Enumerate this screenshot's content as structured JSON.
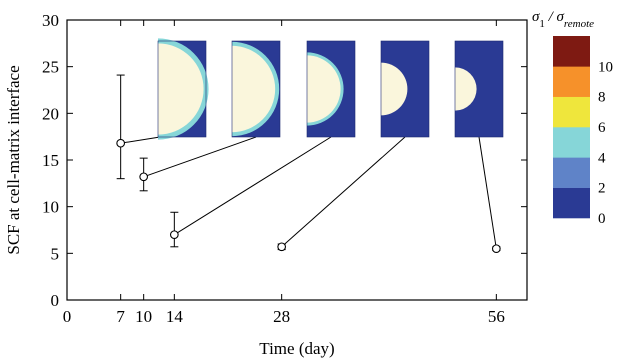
{
  "chart_data": {
    "type": "scatter",
    "xlabel": "Time (day)",
    "ylabel": "SCF at cell-matrix interface",
    "xlim": [
      0,
      60
    ],
    "ylim": [
      0,
      30
    ],
    "xticks": [
      0,
      7,
      10,
      14,
      28,
      56
    ],
    "yticks": [
      0,
      5,
      10,
      15,
      20,
      25,
      30
    ],
    "grid": false,
    "points": [
      {
        "x": 7,
        "y": 16.8,
        "err_low": 13.0,
        "err_high": 24.1
      },
      {
        "x": 10,
        "y": 13.2,
        "err_low": 11.7,
        "err_high": 15.2
      },
      {
        "x": 14,
        "y": 7.0,
        "err_low": 5.7,
        "err_high": 9.4
      },
      {
        "x": 28,
        "y": 5.7,
        "err_low": 5.4,
        "err_high": 6.0
      },
      {
        "x": 56,
        "y": 5.5,
        "err_low": 5.3,
        "err_high": 5.7
      }
    ],
    "insets": [
      {
        "day": 7,
        "cell_fraction": 0.95,
        "band": "strong"
      },
      {
        "day": 10,
        "cell_fraction": 0.9,
        "band": "medium"
      },
      {
        "day": 14,
        "cell_fraction": 0.7,
        "band": "sliver"
      },
      {
        "day": 28,
        "cell_fraction": 0.55,
        "band": "none"
      },
      {
        "day": 56,
        "cell_fraction": 0.45,
        "band": "none"
      }
    ],
    "colorbar": {
      "title": "σ1 / σremote",
      "title_main": "σ",
      "title_sub1": "1",
      "title_sep": " / σ",
      "title_sub2": "remote",
      "ticks": [
        "0",
        "2",
        "4",
        "6",
        "8",
        "10"
      ],
      "levels": [
        {
          "from": 0,
          "to": 2,
          "color": "#2a3a94"
        },
        {
          "from": 2,
          "to": 4,
          "color": "#5f83c8"
        },
        {
          "from": 4,
          "to": 6,
          "color": "#86d6d8"
        },
        {
          "from": 6,
          "to": 8,
          "color": "#efe63c"
        },
        {
          "from": 8,
          "to": 10,
          "color": "#f6912a"
        },
        {
          "from": 10,
          "to": 12,
          "color": "#7e1a12"
        }
      ]
    }
  },
  "colors": {
    "matrix": "#2a3a94",
    "cell": "#faf6dc",
    "axis": "#000000"
  }
}
